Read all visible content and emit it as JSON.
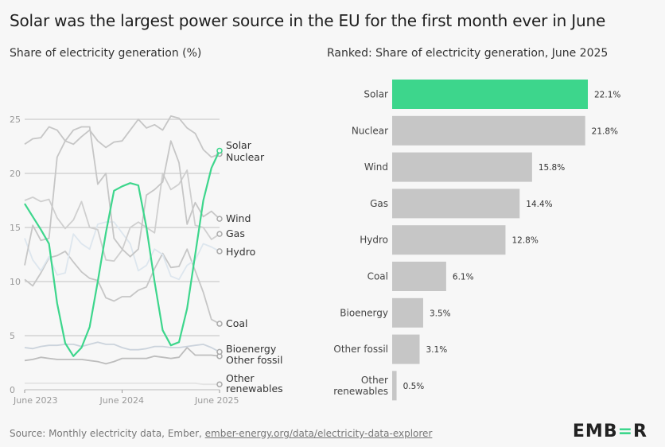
{
  "title": "Solar was the largest power source in the EU for the first month ever in June",
  "source": {
    "prefix": "Source: Monthly electricity data, Ember, ",
    "link": "ember-energy.org/data/electricity-data-explorer"
  },
  "logo": "EMBER",
  "colors": {
    "accent": "#3dd68c",
    "gray": "#c6c6c6",
    "grid": "#d4d4d4",
    "background": "#f7f7f7"
  },
  "chart_data": [
    {
      "type": "line",
      "title": "Share of electricity generation (%)",
      "ylim": [
        0,
        25
      ],
      "yticks": [
        0,
        5,
        10,
        15,
        20,
        25
      ],
      "xticks": [
        "June 2023",
        "June 2024",
        "June 2025"
      ],
      "x_range": [
        "2023-06",
        "2025-06"
      ],
      "grid": true,
      "series": [
        {
          "name": "Solar",
          "color": "#3dd68c",
          "values": [
            17.2,
            16.0,
            14.8,
            13.5,
            8.0,
            4.3,
            3.1,
            3.9,
            5.8,
            10.0,
            14.5,
            18.4,
            18.8,
            19.1,
            18.9,
            15.0,
            10.0,
            5.5,
            4.1,
            4.4,
            7.5,
            12.5,
            17.5,
            20.5,
            22.1
          ]
        },
        {
          "name": "Nuclear",
          "color": "#c6c6c6",
          "values": [
            22.7,
            23.2,
            23.3,
            24.3,
            24.0,
            23.0,
            22.7,
            23.4,
            24.0,
            23.0,
            22.4,
            22.9,
            23.0,
            24.0,
            25.0,
            24.2,
            24.5,
            24.0,
            25.3,
            25.1,
            24.2,
            23.7,
            22.2,
            21.5,
            21.8
          ]
        },
        {
          "name": "Wind",
          "color": "#c6c6c6",
          "values": [
            11.5,
            15.2,
            13.8,
            14.0,
            21.5,
            23.0,
            24.0,
            24.3,
            24.3,
            19.0,
            20.0,
            14.0,
            13.0,
            12.3,
            13.0,
            18.0,
            18.5,
            19.2,
            23.0,
            21.0,
            15.3,
            17.3,
            16.0,
            16.5,
            15.8
          ]
        },
        {
          "name": "Gas",
          "color": "#cfcfcf",
          "values": [
            17.5,
            17.8,
            17.4,
            17.6,
            15.9,
            14.9,
            15.7,
            17.4,
            15.0,
            14.8,
            12.0,
            11.9,
            12.9,
            15.0,
            15.5,
            15.0,
            14.5,
            20.0,
            18.5,
            19.0,
            20.3,
            15.2,
            15.0,
            13.9,
            14.4
          ]
        },
        {
          "name": "Hydro",
          "color": "#dde6ee",
          "values": [
            14.0,
            12.0,
            11.0,
            12.3,
            10.6,
            10.8,
            14.4,
            13.5,
            13.0,
            15.3,
            15.5,
            15.5,
            14.5,
            13.5,
            11.0,
            11.5,
            13.0,
            12.5,
            10.5,
            10.2,
            11.5,
            12.0,
            13.5,
            13.2,
            12.8
          ]
        },
        {
          "name": "Coal",
          "color": "#c6c6c6",
          "values": [
            10.2,
            9.6,
            10.8,
            12.2,
            12.4,
            12.8,
            11.8,
            10.9,
            10.3,
            10.1,
            8.5,
            8.2,
            8.6,
            8.6,
            9.2,
            9.5,
            11.2,
            12.6,
            11.3,
            11.4,
            13.0,
            11.0,
            9.0,
            6.5,
            6.1
          ]
        },
        {
          "name": "Bioenergy",
          "color": "#cbd3dc",
          "values": [
            3.9,
            3.8,
            4.0,
            4.1,
            4.1,
            4.2,
            4.2,
            4.0,
            4.2,
            4.4,
            4.2,
            4.2,
            3.9,
            3.7,
            3.7,
            3.8,
            4.0,
            4.0,
            3.9,
            3.9,
            4.0,
            4.1,
            4.2,
            3.9,
            3.5
          ]
        },
        {
          "name": "Other fossil",
          "color": "#bdbdbd",
          "values": [
            2.7,
            2.8,
            3.0,
            2.9,
            2.8,
            2.8,
            2.8,
            2.8,
            2.7,
            2.6,
            2.4,
            2.6,
            2.9,
            2.9,
            2.9,
            2.9,
            3.1,
            3.0,
            2.9,
            3.0,
            3.9,
            3.2,
            3.2,
            3.2,
            3.1
          ]
        },
        {
          "name": "Other renewables",
          "color": "#e4e4e4",
          "values": [
            0.6,
            0.6,
            0.6,
            0.6,
            0.6,
            0.6,
            0.6,
            0.6,
            0.6,
            0.6,
            0.6,
            0.6,
            0.6,
            0.6,
            0.6,
            0.6,
            0.6,
            0.6,
            0.6,
            0.6,
            0.6,
            0.6,
            0.5,
            0.5,
            0.5
          ]
        }
      ]
    },
    {
      "type": "bar",
      "orientation": "horizontal",
      "title": "Ranked: Share of electricity generation, June 2025",
      "categories": [
        "Solar",
        "Nuclear",
        "Wind",
        "Gas",
        "Hydro",
        "Coal",
        "Bioenergy",
        "Other fossil",
        "Other renewables"
      ],
      "values": [
        22.1,
        21.8,
        15.8,
        14.4,
        12.8,
        6.1,
        3.5,
        3.1,
        0.5
      ],
      "labels": [
        "22.1%",
        "21.8%",
        "15.8%",
        "14.4%",
        "12.8%",
        "6.1%",
        "3.5%",
        "3.1%",
        "0.5%"
      ],
      "highlight": "Solar"
    }
  ]
}
